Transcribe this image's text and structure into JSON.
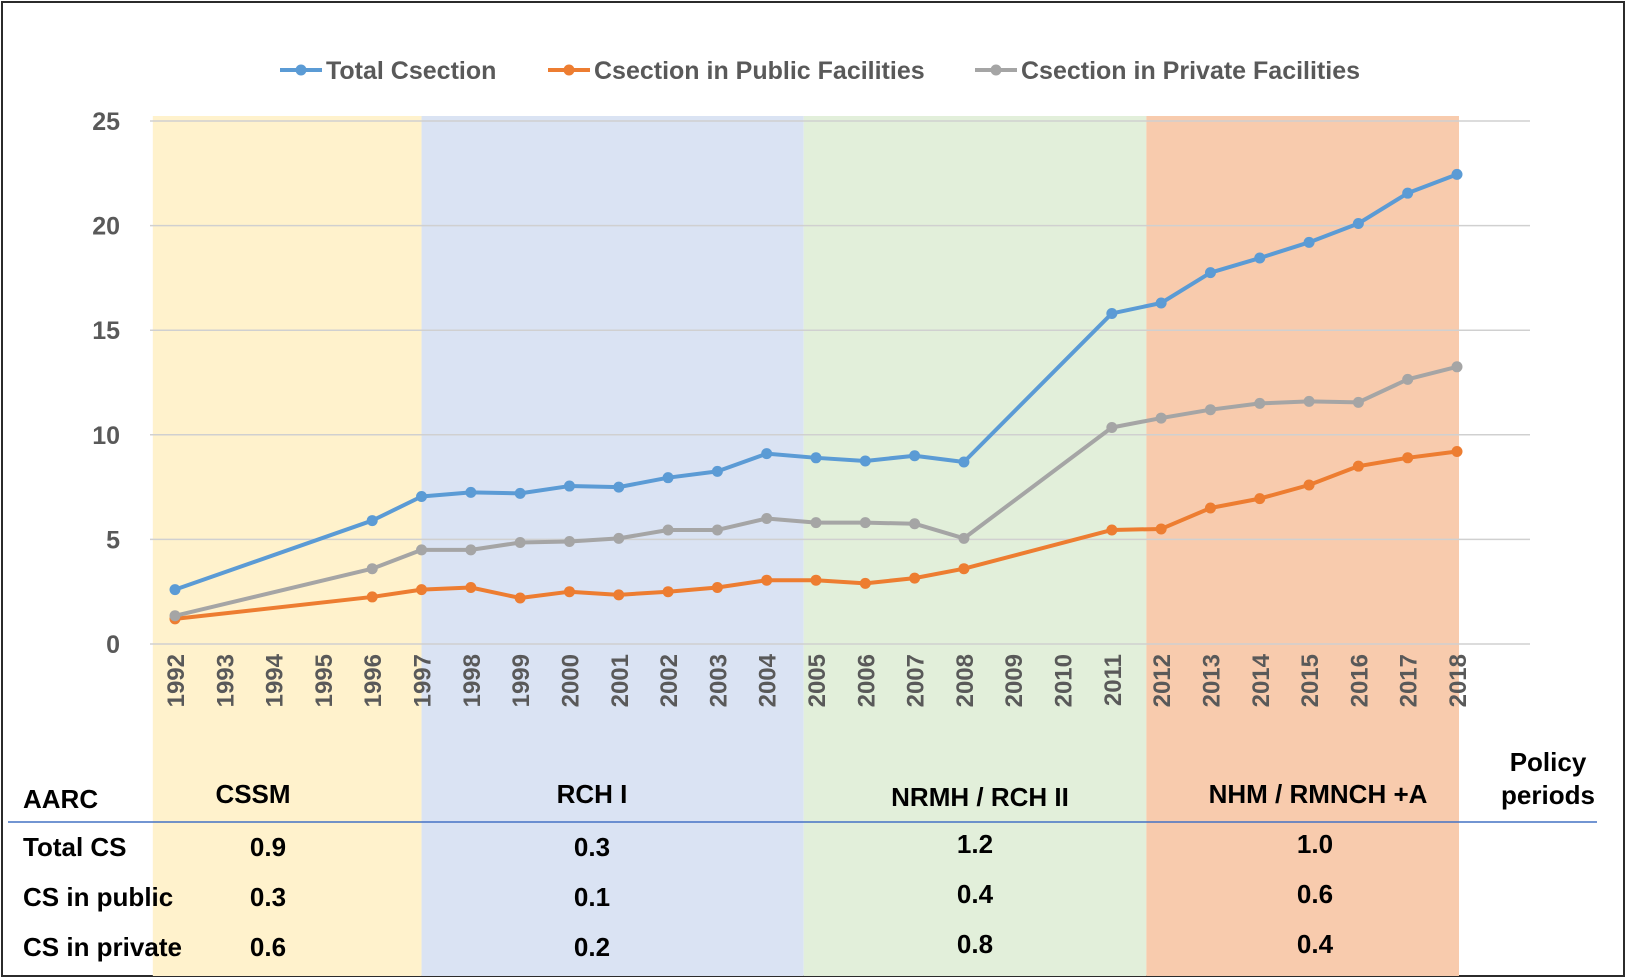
{
  "chart_data": {
    "type": "line",
    "x": [
      "1992",
      "1993",
      "1994",
      "1995",
      "1996",
      "1997",
      "1998",
      "1999",
      "2000",
      "2001",
      "2002",
      "2003",
      "2004",
      "2005",
      "2006",
      "2007",
      "2008",
      "2009",
      "2010",
      "2011",
      "2012",
      "2013",
      "2014",
      "2015",
      "2016",
      "2017",
      "2018"
    ],
    "ylim": [
      0,
      25
    ],
    "yticks": [
      0,
      5,
      10,
      15,
      20,
      25
    ],
    "grid": true,
    "legend_position": "top-center",
    "series": [
      {
        "name": "Total Csection",
        "color": "#5b9bd5",
        "values": [
          2.6,
          null,
          null,
          null,
          5.9,
          7.05,
          7.25,
          7.2,
          7.55,
          7.5,
          7.95,
          8.25,
          9.1,
          8.9,
          8.75,
          9.0,
          8.7,
          null,
          null,
          15.8,
          16.3,
          17.75,
          18.45,
          19.2,
          20.1,
          21.55,
          22.45
        ]
      },
      {
        "name": "Csection in Public Facilities",
        "color": "#ed7d31",
        "values": [
          1.2,
          null,
          null,
          null,
          2.25,
          2.6,
          2.7,
          2.2,
          2.5,
          2.35,
          2.5,
          2.7,
          3.05,
          3.05,
          2.9,
          3.15,
          3.6,
          null,
          null,
          5.45,
          5.5,
          6.5,
          6.95,
          7.6,
          8.5,
          8.9,
          9.2
        ]
      },
      {
        "name": "Csection in Private Facilities",
        "color": "#a5a5a5",
        "values": [
          1.35,
          null,
          null,
          null,
          3.6,
          4.5,
          4.5,
          4.85,
          4.9,
          5.05,
          5.45,
          5.45,
          6.0,
          5.8,
          5.8,
          5.75,
          5.05,
          null,
          null,
          10.35,
          10.8,
          11.2,
          11.5,
          11.6,
          11.55,
          12.65,
          13.25
        ]
      }
    ],
    "policy_periods": [
      {
        "label": "CSSM",
        "start": "1992",
        "end": "1997",
        "color": "#fff2cc"
      },
      {
        "label": "RCH I",
        "start": "1997",
        "end": "2004",
        "color": "#dae3f3"
      },
      {
        "label": "NRMH / RCH II",
        "start": "2004",
        "end": "2011",
        "color": "#e2efda"
      },
      {
        "label": "NHM / RMNCH +A",
        "start": "2011",
        "end": "2018",
        "color": "#f8cbad"
      }
    ]
  },
  "table": {
    "header_label": "AARC",
    "policy_periods_label": [
      "Policy",
      "periods"
    ],
    "rows": [
      {
        "label": "Total CS",
        "values": [
          "0.9",
          "0.3",
          "1.2",
          "1.0"
        ]
      },
      {
        "label": "CS in public",
        "values": [
          "0.3",
          "0.1",
          "0.4",
          "0.6"
        ]
      },
      {
        "label": "CS in private",
        "values": [
          "0.6",
          "0.2",
          "0.8",
          "0.4"
        ]
      }
    ]
  }
}
